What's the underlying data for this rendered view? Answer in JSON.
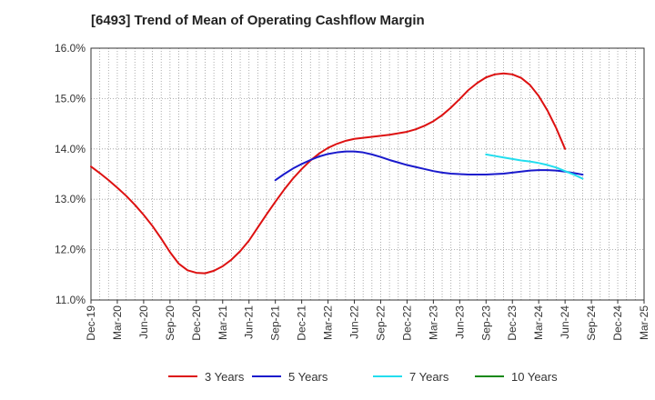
{
  "chart_data": {
    "type": "line",
    "title": "[6493]  Trend of Mean of Operating Cashflow Margin",
    "xlabel": "",
    "ylabel": "",
    "ylim": [
      11.0,
      16.0
    ],
    "y_ticks": [
      11.0,
      12.0,
      13.0,
      14.0,
      15.0,
      16.0
    ],
    "y_tick_labels": [
      "11.0%",
      "12.0%",
      "13.0%",
      "14.0%",
      "15.0%",
      "16.0%"
    ],
    "x_tick_labels": [
      "Dec-19",
      "Mar-20",
      "Jun-20",
      "Sep-20",
      "Dec-20",
      "Mar-21",
      "Jun-21",
      "Sep-21",
      "Dec-21",
      "Mar-22",
      "Jun-22",
      "Sep-22",
      "Dec-22",
      "Mar-23",
      "Jun-23",
      "Sep-23",
      "Dec-23",
      "Mar-24",
      "Jun-24",
      "Sep-24",
      "Dec-24",
      "Mar-25"
    ],
    "grid": true,
    "legend_position": "bottom",
    "series": [
      {
        "name": "3 Years",
        "color": "#dd1111",
        "points": [
          [
            "Dec-19",
            13.65
          ],
          [
            "Jan-20",
            13.52
          ],
          [
            "Feb-20",
            13.38
          ],
          [
            "Mar-20",
            13.23
          ],
          [
            "Apr-20",
            13.07
          ],
          [
            "May-20",
            12.89
          ],
          [
            "Jun-20",
            12.69
          ],
          [
            "Jul-20",
            12.47
          ],
          [
            "Aug-20",
            12.22
          ],
          [
            "Sep-20",
            11.95
          ],
          [
            "Oct-20",
            11.72
          ],
          [
            "Nov-20",
            11.59
          ],
          [
            "Dec-20",
            11.54
          ],
          [
            "Jan-21",
            11.53
          ],
          [
            "Feb-21",
            11.58
          ],
          [
            "Mar-21",
            11.67
          ],
          [
            "Apr-21",
            11.8
          ],
          [
            "May-21",
            11.97
          ],
          [
            "Jun-21",
            12.18
          ],
          [
            "Jul-21",
            12.44
          ],
          [
            "Aug-21",
            12.7
          ],
          [
            "Sep-21",
            12.95
          ],
          [
            "Oct-21",
            13.19
          ],
          [
            "Nov-21",
            13.41
          ],
          [
            "Dec-21",
            13.6
          ],
          [
            "Jan-22",
            13.77
          ],
          [
            "Feb-22",
            13.91
          ],
          [
            "Mar-22",
            14.02
          ],
          [
            "Apr-22",
            14.1
          ],
          [
            "May-22",
            14.16
          ],
          [
            "Jun-22",
            14.2
          ],
          [
            "Jul-22",
            14.22
          ],
          [
            "Aug-22",
            14.24
          ],
          [
            "Sep-22",
            14.26
          ],
          [
            "Oct-22",
            14.28
          ],
          [
            "Nov-22",
            14.31
          ],
          [
            "Dec-22",
            14.34
          ],
          [
            "Jan-23",
            14.39
          ],
          [
            "Feb-23",
            14.46
          ],
          [
            "Mar-23",
            14.55
          ],
          [
            "Apr-23",
            14.67
          ],
          [
            "May-23",
            14.82
          ],
          [
            "Jun-23",
            14.99
          ],
          [
            "Jul-23",
            15.17
          ],
          [
            "Aug-23",
            15.31
          ],
          [
            "Sep-23",
            15.42
          ],
          [
            "Oct-23",
            15.48
          ],
          [
            "Nov-23",
            15.5
          ],
          [
            "Dec-23",
            15.48
          ],
          [
            "Jan-24",
            15.41
          ],
          [
            "Feb-24",
            15.27
          ],
          [
            "Mar-24",
            15.05
          ],
          [
            "Apr-24",
            14.76
          ],
          [
            "May-24",
            14.41
          ],
          [
            "Jun-24",
            14.0
          ]
        ]
      },
      {
        "name": "5 Years",
        "color": "#1a1acc",
        "points": [
          [
            "Sep-21",
            13.38
          ],
          [
            "Oct-21",
            13.5
          ],
          [
            "Nov-21",
            13.61
          ],
          [
            "Dec-21",
            13.7
          ],
          [
            "Jan-22",
            13.78
          ],
          [
            "Feb-22",
            13.85
          ],
          [
            "Mar-22",
            13.9
          ],
          [
            "Apr-22",
            13.93
          ],
          [
            "May-22",
            13.95
          ],
          [
            "Jun-22",
            13.95
          ],
          [
            "Jul-22",
            13.93
          ],
          [
            "Aug-22",
            13.89
          ],
          [
            "Sep-22",
            13.84
          ],
          [
            "Oct-22",
            13.78
          ],
          [
            "Nov-22",
            13.73
          ],
          [
            "Dec-22",
            13.68
          ],
          [
            "Jan-23",
            13.64
          ],
          [
            "Feb-23",
            13.6
          ],
          [
            "Mar-23",
            13.56
          ],
          [
            "Apr-23",
            13.53
          ],
          [
            "May-23",
            13.51
          ],
          [
            "Jun-23",
            13.5
          ],
          [
            "Jul-23",
            13.49
          ],
          [
            "Aug-23",
            13.49
          ],
          [
            "Sep-23",
            13.49
          ],
          [
            "Oct-23",
            13.5
          ],
          [
            "Nov-23",
            13.51
          ],
          [
            "Dec-23",
            13.53
          ],
          [
            "Jan-24",
            13.55
          ],
          [
            "Feb-24",
            13.57
          ],
          [
            "Mar-24",
            13.58
          ],
          [
            "Apr-24",
            13.58
          ],
          [
            "May-24",
            13.57
          ],
          [
            "Jun-24",
            13.55
          ],
          [
            "Jul-24",
            13.52
          ],
          [
            "Aug-24",
            13.49
          ]
        ]
      },
      {
        "name": "7 Years",
        "color": "#22ddee",
        "points": [
          [
            "Sep-23",
            13.89
          ],
          [
            "Oct-23",
            13.86
          ],
          [
            "Nov-23",
            13.83
          ],
          [
            "Dec-23",
            13.8
          ],
          [
            "Jan-24",
            13.77
          ],
          [
            "Feb-24",
            13.75
          ],
          [
            "Mar-24",
            13.72
          ],
          [
            "Apr-24",
            13.68
          ],
          [
            "May-24",
            13.63
          ],
          [
            "Jun-24",
            13.56
          ],
          [
            "Jul-24",
            13.49
          ],
          [
            "Aug-24",
            13.41
          ]
        ]
      },
      {
        "name": "10 Years",
        "color": "#118811",
        "points": []
      }
    ]
  }
}
